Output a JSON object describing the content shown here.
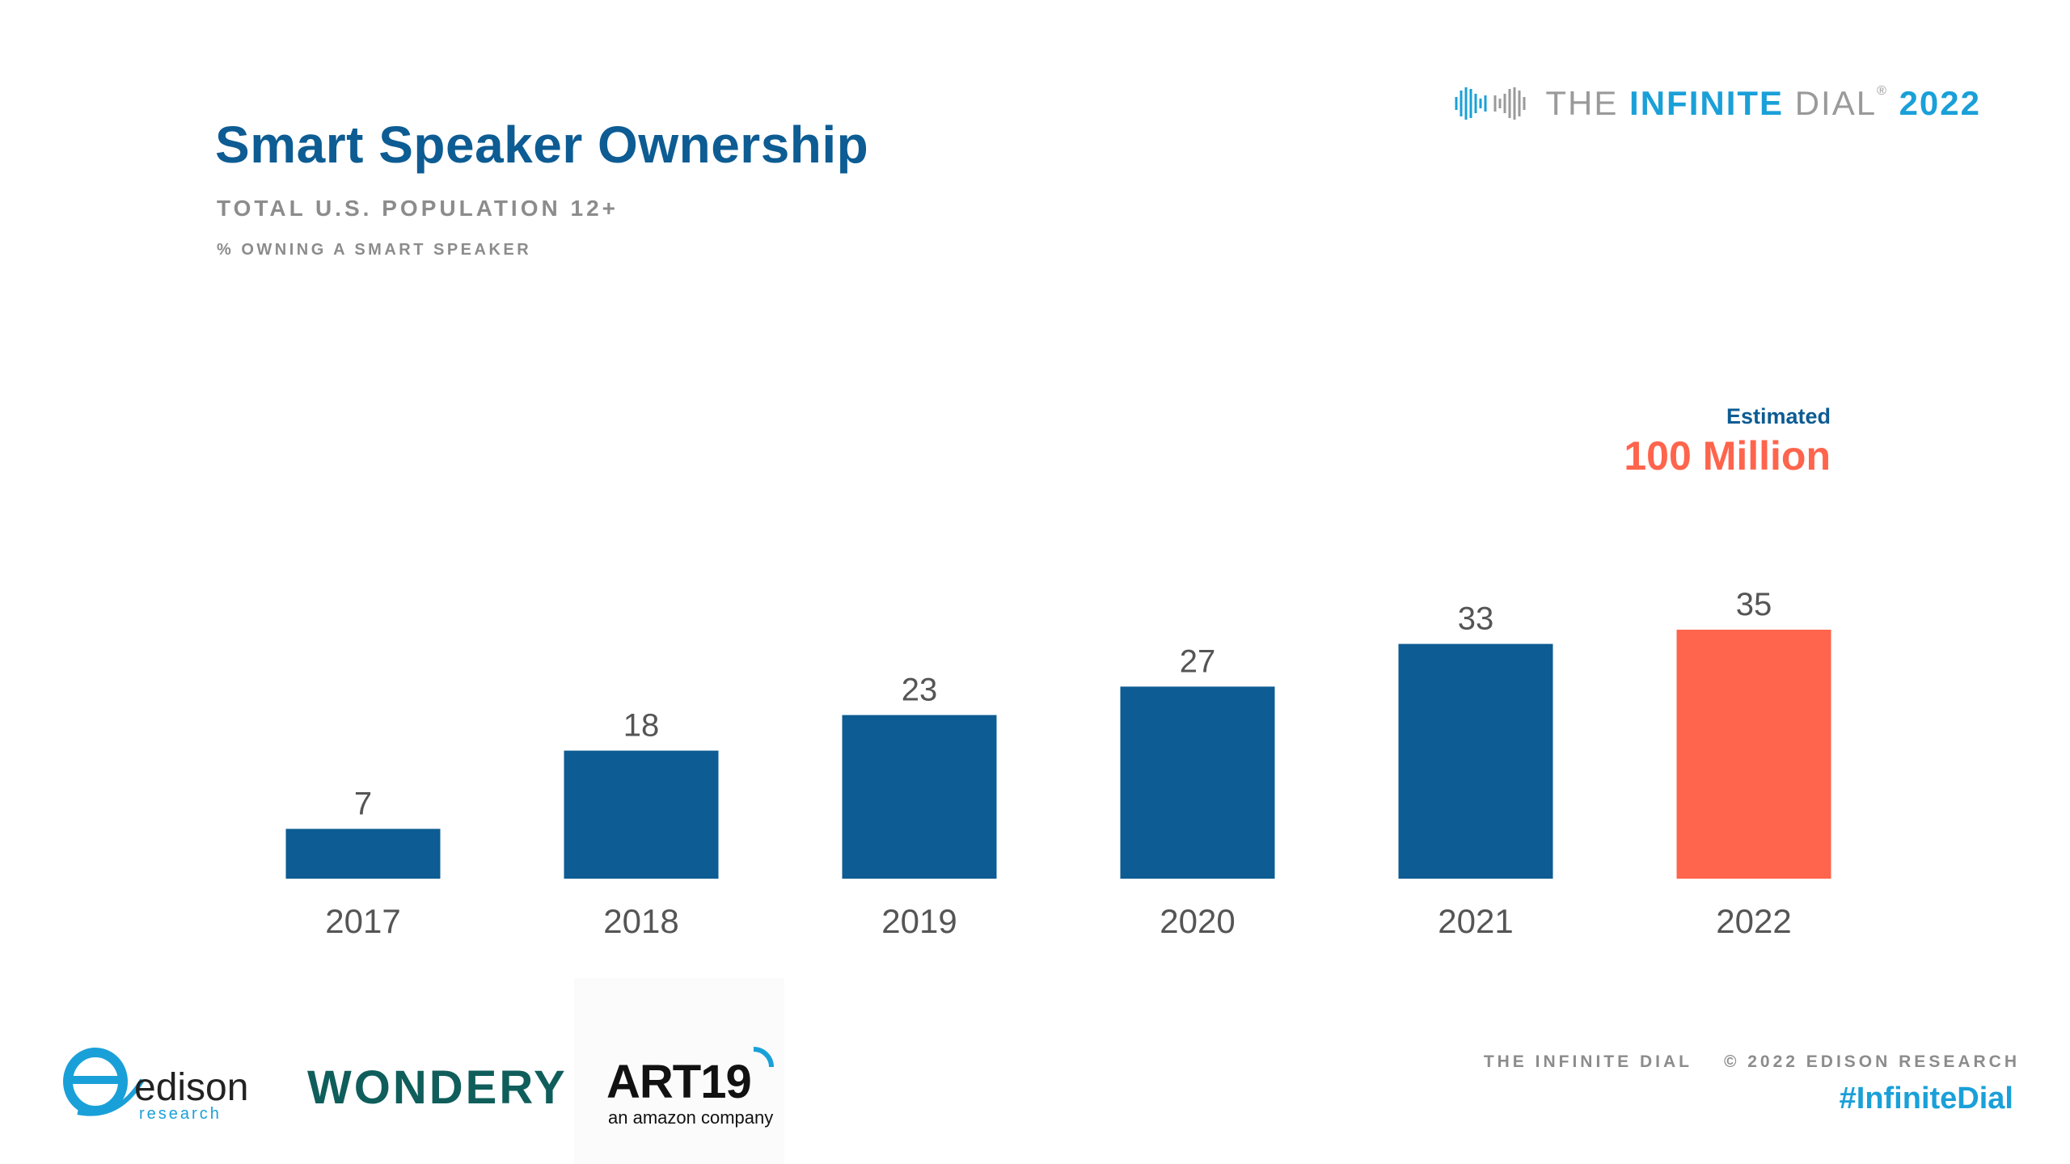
{
  "header": {
    "title": "Smart Speaker Ownership",
    "subtitle": "TOTAL U.S. POPULATION 12+",
    "metric_label": "% OWNING A SMART SPEAKER"
  },
  "brand": {
    "prefix": "THE",
    "name": "INFINITE",
    "suffix": "DIAL",
    "registered": "®",
    "year": "2022"
  },
  "callout": {
    "label": "Estimated",
    "value": "100 Million"
  },
  "chart_data": {
    "type": "bar",
    "title": "Smart Speaker Ownership",
    "subtitle": "TOTAL U.S. POPULATION 12+",
    "ylabel": "% OWNING A SMART SPEAKER",
    "xlabel": "",
    "categories": [
      "2017",
      "2018",
      "2019",
      "2020",
      "2021",
      "2022"
    ],
    "values": [
      7,
      18,
      23,
      27,
      33,
      35
    ],
    "ylim": [
      0,
      35
    ],
    "grid": false,
    "bar_colors": [
      "#0d5c93",
      "#0d5c93",
      "#0d5c93",
      "#0d5c93",
      "#0d5c93",
      "#ff644c"
    ],
    "annotation": "Estimated 100 Million"
  },
  "footer": {
    "logos": {
      "edison_name": "edison",
      "edison_sub": "research",
      "wondery": "WONDERY",
      "art19": "ART19",
      "art19_tag": "an amazon company"
    },
    "copyright_left": "THE INFINITE DIAL",
    "copyright_right": "© 2022 EDISON RESEARCH",
    "hashtag": "#InfiniteDial"
  },
  "colors": {
    "primary": "#0d5c93",
    "highlight": "#ff644c",
    "accent": "#1aa0d8",
    "muted": "#8c8c8c",
    "label": "#555555"
  }
}
